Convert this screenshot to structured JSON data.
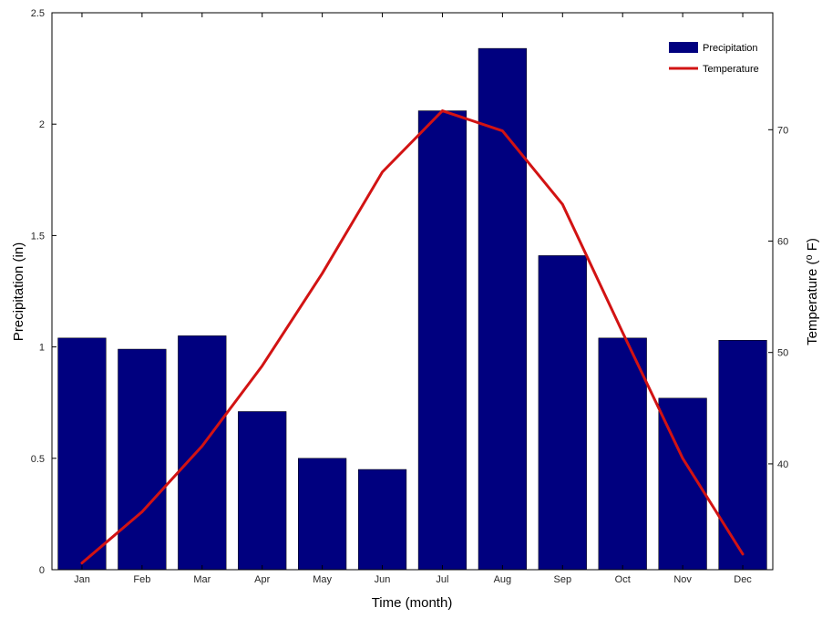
{
  "chart_data": {
    "type": "bar",
    "title": "",
    "xlabel": "Time (month)",
    "ylabel": "Precipitation (in)",
    "y2label": "Temperature (⁰ F)",
    "categories": [
      "Jan",
      "Feb",
      "Mar",
      "Apr",
      "May",
      "Jun",
      "Jul",
      "Aug",
      "Sep",
      "Oct",
      "Nov",
      "Dec"
    ],
    "ylim": [
      0,
      2.5
    ],
    "yticks": [
      "0",
      "0.5",
      "1",
      "1.5",
      "2",
      "2.5"
    ],
    "y2lim": [
      30.5,
      80.5
    ],
    "y2ticks": [
      "40",
      "50",
      "60",
      "70"
    ],
    "grid": false,
    "legend_position": "top-right",
    "series": [
      {
        "name": "Precipitation",
        "type": "bar",
        "axis": "left",
        "color": "#00007F",
        "values": [
          1.04,
          0.99,
          1.05,
          0.71,
          0.5,
          0.45,
          2.06,
          2.34,
          1.41,
          1.04,
          0.77,
          1.03
        ]
      },
      {
        "name": "Temperature",
        "type": "line",
        "axis": "right",
        "color": "#D21313",
        "values": [
          31.1,
          35.7,
          41.6,
          48.8,
          57.1,
          66.2,
          71.7,
          69.9,
          63.3,
          51.8,
          40.5,
          31.9
        ]
      }
    ]
  }
}
